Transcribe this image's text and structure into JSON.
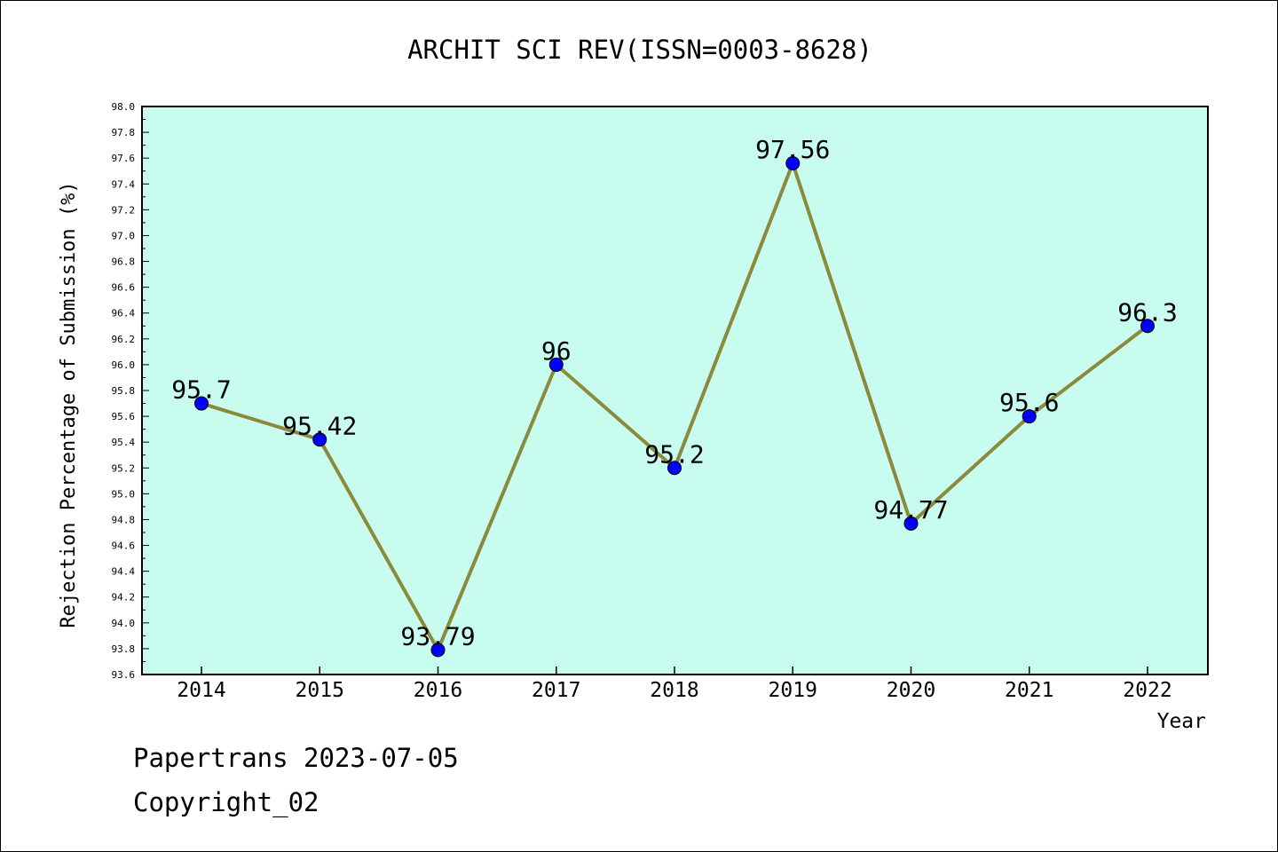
{
  "chart_data": {
    "type": "line",
    "title": "ARCHIT SCI REV(ISSN=0003-8628)",
    "xlabel": "Year",
    "ylabel": "Rejection Percentage of Submission (%)",
    "categories": [
      "2014",
      "2015",
      "2016",
      "2017",
      "2018",
      "2019",
      "2020",
      "2021",
      "2022"
    ],
    "values": [
      95.7,
      95.42,
      93.79,
      96,
      95.2,
      97.56,
      94.77,
      95.6,
      96.3
    ],
    "data_labels": [
      "95.7",
      "95.42",
      "93.79",
      "96",
      "95.2",
      "97.56",
      "94.77",
      "95.6",
      "96.3"
    ],
    "ylim": [
      93.6,
      98.0
    ],
    "yticks": [
      "93.6",
      "93.8",
      "94.0",
      "94.2",
      "94.4",
      "94.6",
      "94.8",
      "95.0",
      "95.2",
      "95.4",
      "95.6",
      "95.8",
      "96.0",
      "96.2",
      "96.4",
      "96.6",
      "96.8",
      "97.0",
      "97.2",
      "97.4",
      "97.6",
      "97.8",
      "98.0"
    ],
    "grid": false,
    "colors": {
      "plot_background": "#c8fcee",
      "line": "#8b8a3c",
      "marker": "#0000ff"
    }
  },
  "footer": {
    "line1": "Papertrans 2023-07-05",
    "line2": "Copyright_02"
  }
}
